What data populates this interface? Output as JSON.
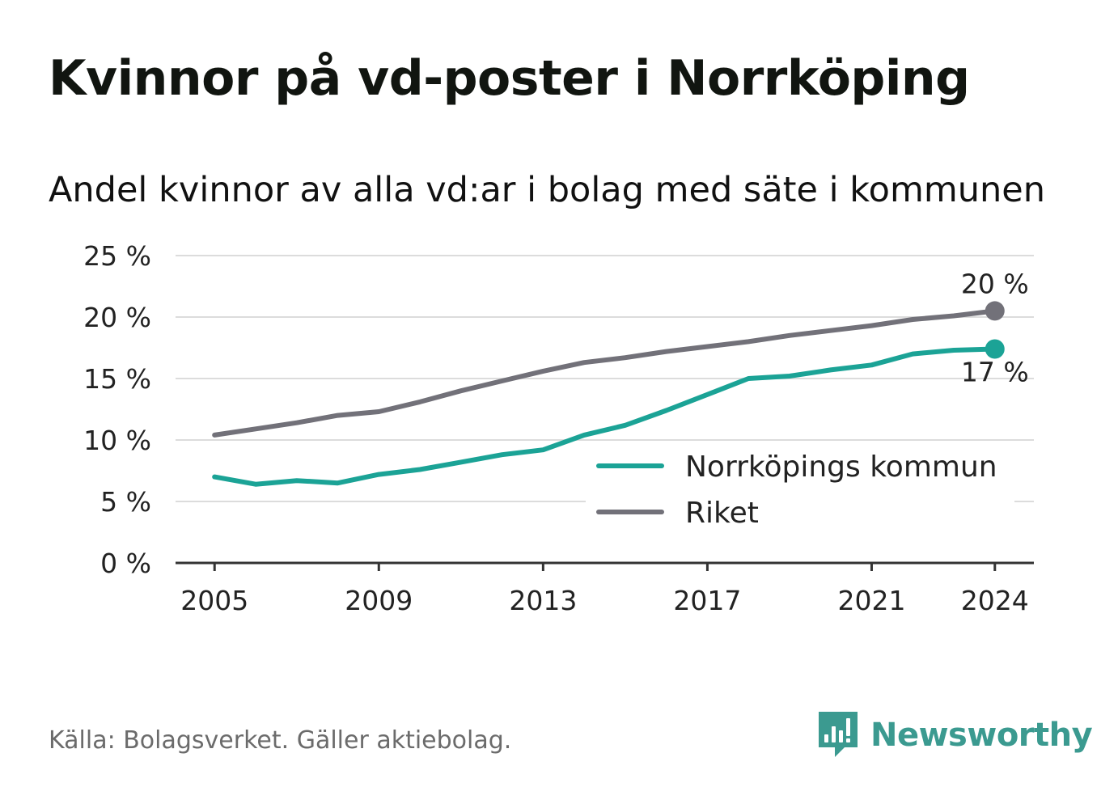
{
  "title": "Kvinnor på vd-poster i Norrköping",
  "subtitle": "Andel kvinnor av alla vd:ar i bolag med säte i kommunen",
  "source": "Källa: Bolagsverket. Gäller aktiebolag.",
  "brand": {
    "name": "Newsworthy",
    "icon": "newsworthy-logo-icon",
    "color": "#3b9a90"
  },
  "chart_data": {
    "type": "line",
    "x": [
      2005,
      2006,
      2007,
      2008,
      2009,
      2010,
      2011,
      2012,
      2013,
      2014,
      2015,
      2016,
      2017,
      2018,
      2019,
      2020,
      2021,
      2022,
      2023,
      2024
    ],
    "series": [
      {
        "name": "Norrköpings kommun",
        "color": "#1ba396",
        "values": [
          7.0,
          6.4,
          6.7,
          6.5,
          7.2,
          7.6,
          8.2,
          8.8,
          9.2,
          10.4,
          11.2,
          12.4,
          13.7,
          15.0,
          15.2,
          15.7,
          16.1,
          17.0,
          17.3,
          17.4
        ],
        "end_label": "17 %"
      },
      {
        "name": "Riket",
        "color": "#727179",
        "values": [
          10.4,
          10.9,
          11.4,
          12.0,
          12.3,
          13.1,
          14.0,
          14.8,
          15.6,
          16.3,
          16.7,
          17.2,
          17.6,
          18.0,
          18.5,
          18.9,
          19.3,
          19.8,
          20.1,
          20.5
        ],
        "end_label": "20 %"
      }
    ],
    "ylim": [
      0,
      25
    ],
    "y_ticks": [
      0,
      5,
      10,
      15,
      20,
      25
    ],
    "y_tick_labels": [
      "0 %",
      "5 %",
      "10 %",
      "15 %",
      "20 %",
      "25 %"
    ],
    "x_ticks": [
      2005,
      2009,
      2013,
      2017,
      2021,
      2024
    ],
    "x_tick_labels": [
      "2005",
      "2009",
      "2013",
      "2017",
      "2021",
      "2024"
    ],
    "xlim": [
      2004.05,
      2024.95
    ],
    "grid": true,
    "legend_position": "bottom-right"
  }
}
